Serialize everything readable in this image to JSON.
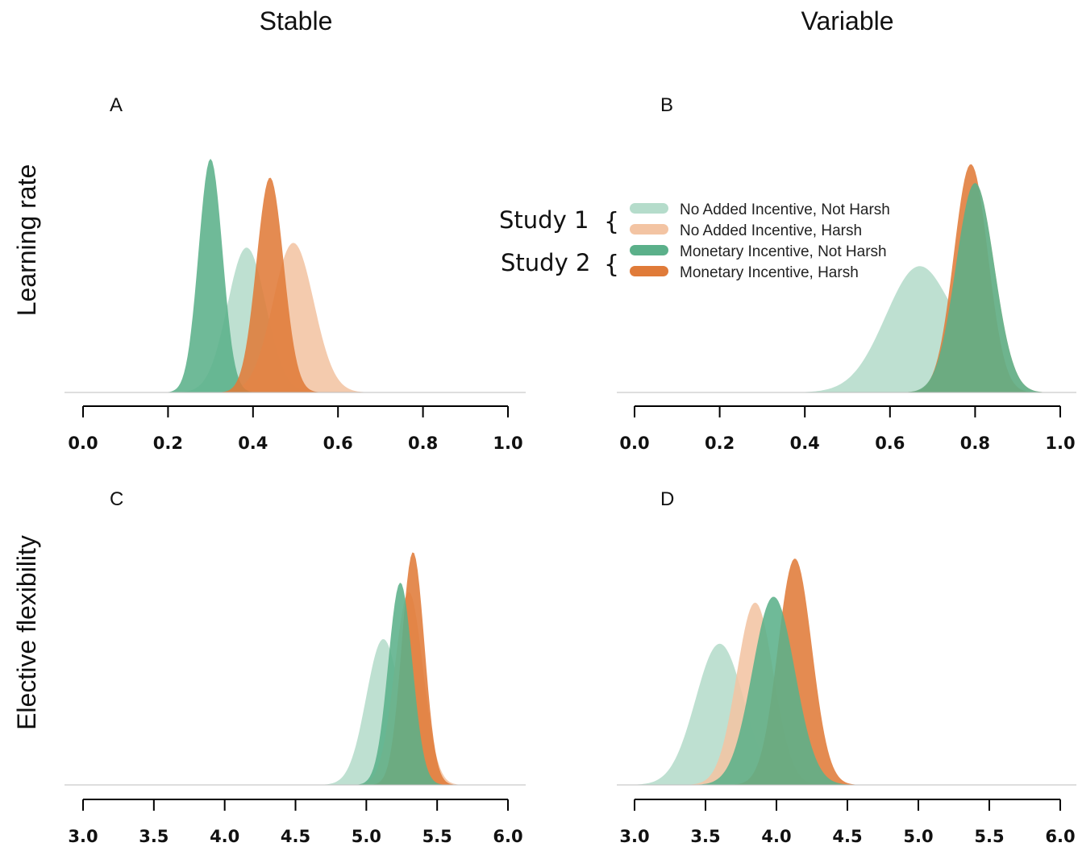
{
  "column_titles": [
    "Stable",
    "Variable"
  ],
  "row_titles": [
    "Learning rate",
    "Elective flexibility"
  ],
  "legend": {
    "groups": [
      {
        "label": "Study 1",
        "entries": [
          0,
          1
        ]
      },
      {
        "label": "Study 2",
        "entries": [
          2,
          3
        ]
      }
    ],
    "entries": [
      {
        "label": "No Added Incentive, Not Harsh",
        "color": "#b5dccb"
      },
      {
        "label": "No Added Incentive, Harsh",
        "color": "#f3c4a3"
      },
      {
        "label": "Monetary Incentive, Not Harsh",
        "color": "#5bb08a"
      },
      {
        "label": "Monetary Incentive, Harsh",
        "color": "#e07b39"
      }
    ]
  },
  "chart_data": [
    {
      "type": "area",
      "panel": "A",
      "xlim": [
        0.0,
        1.0
      ],
      "xticks": [
        "0.0",
        "0.2",
        "0.4",
        "0.6",
        "0.8",
        "1.0"
      ],
      "ymax": 1.0,
      "series": [
        {
          "legend_index": 0,
          "color": "#b5dccb",
          "peaks": [
            {
              "mu": 0.385,
              "sigma": 0.045,
              "amp": 0.62
            }
          ]
        },
        {
          "legend_index": 1,
          "color": "#f3c4a3",
          "peaks": [
            {
              "mu": 0.495,
              "sigma": 0.048,
              "amp": 0.64
            }
          ]
        },
        {
          "legend_index": 2,
          "color": "#5bb08a",
          "peaks": [
            {
              "mu": 0.3,
              "sigma": 0.028,
              "amp": 1.0
            }
          ]
        },
        {
          "legend_index": 3,
          "color": "#e07b39",
          "peaks": [
            {
              "mu": 0.44,
              "sigma": 0.032,
              "amp": 0.92
            }
          ]
        }
      ]
    },
    {
      "type": "area",
      "panel": "B",
      "xlim": [
        0.0,
        1.0
      ],
      "xticks": [
        "0.0",
        "0.2",
        "0.4",
        "0.6",
        "0.8",
        "1.0"
      ],
      "ymax": 0.87,
      "series": [
        {
          "legend_index": 0,
          "color": "#b5dccb",
          "peaks": [
            {
              "mu": 0.67,
              "sigma": 0.08,
              "amp": 0.47
            },
            {
              "mu": 0.82,
              "sigma": 0.04,
              "amp": 0.12
            }
          ]
        },
        {
          "legend_index": 1,
          "color": "#f3c4a3",
          "peaks": [
            {
              "mu": 0.8,
              "sigma": 0.045,
              "amp": 0.78
            }
          ]
        },
        {
          "legend_index": 3,
          "color": "#e07b39",
          "peaks": [
            {
              "mu": 0.79,
              "sigma": 0.04,
              "amp": 0.85
            }
          ]
        },
        {
          "legend_index": 2,
          "color": "#5bb08a",
          "peaks": [
            {
              "mu": 0.8,
              "sigma": 0.045,
              "amp": 0.78
            }
          ]
        }
      ]
    },
    {
      "type": "area",
      "panel": "C",
      "xlim": [
        3.0,
        6.0
      ],
      "xticks": [
        "3.0",
        "3.5",
        "4.0",
        "4.5",
        "5.0",
        "5.5",
        "6.0"
      ],
      "ymax": 1.0,
      "series": [
        {
          "legend_index": 0,
          "color": "#b5dccb",
          "peaks": [
            {
              "mu": 5.12,
              "sigma": 0.12,
              "amp": 0.62
            }
          ]
        },
        {
          "legend_index": 1,
          "color": "#f3c4a3",
          "peaks": [
            {
              "mu": 5.3,
              "sigma": 0.1,
              "amp": 0.82
            }
          ]
        },
        {
          "legend_index": 3,
          "color": "#e07b39",
          "peaks": [
            {
              "mu": 5.33,
              "sigma": 0.08,
              "amp": 0.99
            }
          ]
        },
        {
          "legend_index": 2,
          "color": "#5bb08a",
          "peaks": [
            {
              "mu": 5.24,
              "sigma": 0.085,
              "amp": 0.86
            }
          ]
        }
      ]
    },
    {
      "type": "area",
      "panel": "D",
      "xlim": [
        3.0,
        6.0
      ],
      "xticks": [
        "3.0",
        "3.5",
        "4.0",
        "4.5",
        "5.0",
        "5.5",
        "6.0"
      ],
      "ymax": 0.8,
      "series": [
        {
          "legend_index": 0,
          "color": "#b5dccb",
          "peaks": [
            {
              "mu": 3.6,
              "sigma": 0.17,
              "amp": 0.48
            }
          ]
        },
        {
          "legend_index": 1,
          "color": "#f3c4a3",
          "peaks": [
            {
              "mu": 3.85,
              "sigma": 0.13,
              "amp": 0.62
            }
          ]
        },
        {
          "legend_index": 3,
          "color": "#e07b39",
          "peaks": [
            {
              "mu": 4.13,
              "sigma": 0.12,
              "amp": 0.77
            }
          ]
        },
        {
          "legend_index": 2,
          "color": "#5bb08a",
          "peaks": [
            {
              "mu": 3.98,
              "sigma": 0.15,
              "amp": 0.64
            }
          ]
        }
      ]
    }
  ]
}
